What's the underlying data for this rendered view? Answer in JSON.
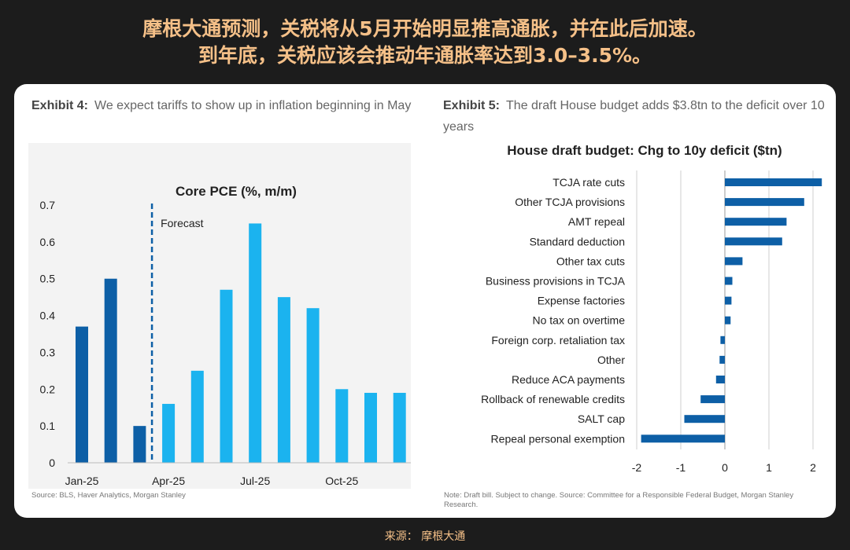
{
  "headline": {
    "line1": "摩根大通预测，关税将从5月开始明显推高通胀，并在此后加速。",
    "line2": "到年底，关税应该会推动年通胀率达到3.0–3.5%。"
  },
  "left": {
    "exhibit_label": "Exhibit 4:",
    "exhibit_text": "We expect tariffs to show up in inflation beginning in May",
    "source": "Source: BLS, Haver Analytics, Morgan Stanley"
  },
  "right": {
    "exhibit_label": "Exhibit 5:",
    "exhibit_text": "The draft House budget adds $3.8tn to the deficit over 10 years",
    "source_line1": "Note: Draft bill. Subject to change. Source: Committee for a Responsible Federal Budget, Morgan Stanley",
    "source_line2": "Research."
  },
  "footer": "来源： 摩根大通",
  "colors": {
    "historical": "#0d5fa6",
    "forecast": "#1bb3ef",
    "hbar": "#0d5fa6",
    "accent": "#f5c088"
  },
  "chart_data": [
    {
      "type": "bar",
      "title": "Core PCE (%, m/m)",
      "annotation": "Forecast",
      "x": [
        "Jan-25",
        "Feb-25",
        "Mar-25",
        "Apr-25",
        "May-25",
        "Jun-25",
        "Jul-25",
        "Aug-25",
        "Sep-25",
        "Oct-25",
        "Nov-25",
        "Dec-25"
      ],
      "x_tick_labels": [
        "Jan-25",
        "Apr-25",
        "Jul-25",
        "Oct-25"
      ],
      "series": [
        {
          "values": [
            0.37,
            0.5,
            0.1,
            null,
            null,
            null,
            null,
            null,
            null,
            null,
            null,
            null
          ],
          "color": "#0d5fa6"
        },
        {
          "values": [
            null,
            null,
            null,
            0.16,
            0.25,
            0.47,
            0.65,
            0.45,
            0.42,
            0.2,
            0.19,
            0.19
          ],
          "color": "#1bb3ef"
        }
      ],
      "yticks": [
        "0",
        "0.1",
        "0.2",
        "0.3",
        "0.4",
        "0.5",
        "0.6",
        "0.7"
      ],
      "ylim": [
        0,
        0.7
      ],
      "grid": false
    },
    {
      "type": "bar",
      "orientation": "horizontal",
      "title": "House draft budget: Chg to 10y deficit ($tn)",
      "categories": [
        "TCJA rate cuts",
        "Other TCJA provisions",
        "AMT repeal",
        "Standard deduction",
        "Other tax cuts",
        "Business provisions in TCJA",
        "Expense factories",
        "No tax on overtime",
        "Foreign corp. retaliation tax",
        "Other",
        "Reduce ACA payments",
        "Rollback of renewable credits",
        "SALT cap",
        "Repeal personal exemption"
      ],
      "values": [
        2.2,
        1.8,
        1.4,
        1.3,
        0.4,
        0.17,
        0.15,
        0.13,
        -0.1,
        -0.12,
        -0.2,
        -0.55,
        -0.92,
        -1.9
      ],
      "xticks": [
        "-2",
        "-1",
        "0",
        "1",
        "2"
      ],
      "xlim": [
        -2,
        2.2
      ],
      "grid": true
    }
  ]
}
